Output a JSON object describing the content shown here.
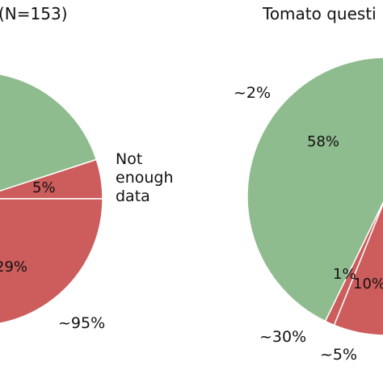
{
  "chart_data": [
    {
      "type": "pie",
      "title": "(N=153)",
      "slices": [
        {
          "label": "",
          "value": 66,
          "color": "#8fbc8f",
          "pct_label": ""
        },
        {
          "label": "5%",
          "value": 5,
          "color": "#cd5c5c",
          "pct_label": "5%"
        },
        {
          "label": "29%",
          "value": 29,
          "color": "#cd5c5c",
          "pct_label": "29%"
        }
      ],
      "outer_labels": [
        "Not enough data",
        "~95%"
      ]
    },
    {
      "type": "pie",
      "title": "Tomato questi",
      "slices": [
        {
          "label": "58%",
          "value": 58,
          "color": "#8fbc8f",
          "pct_label": "58%"
        },
        {
          "label": "10%",
          "value": 10,
          "color": "#cd5c5c",
          "pct_label": "10%"
        },
        {
          "label": "1%",
          "value": 1,
          "color": "#cd5c5c",
          "pct_label": "1%"
        }
      ],
      "outer_labels": [
        "~2%",
        "~30%",
        "~5%"
      ]
    }
  ],
  "texts": {
    "left_title": "(N=153)",
    "right_title": "Tomato questi",
    "left_pct_5": "5%",
    "left_pct_29": "29%",
    "left_not_1": "Not",
    "left_not_2": "enough",
    "left_not_3": "data",
    "left_95": "~95%",
    "right_2": "~2%",
    "right_58": "58%",
    "right_1": "1%",
    "right_10": "10%",
    "right_30": "~30%",
    "right_5": "~5%"
  }
}
